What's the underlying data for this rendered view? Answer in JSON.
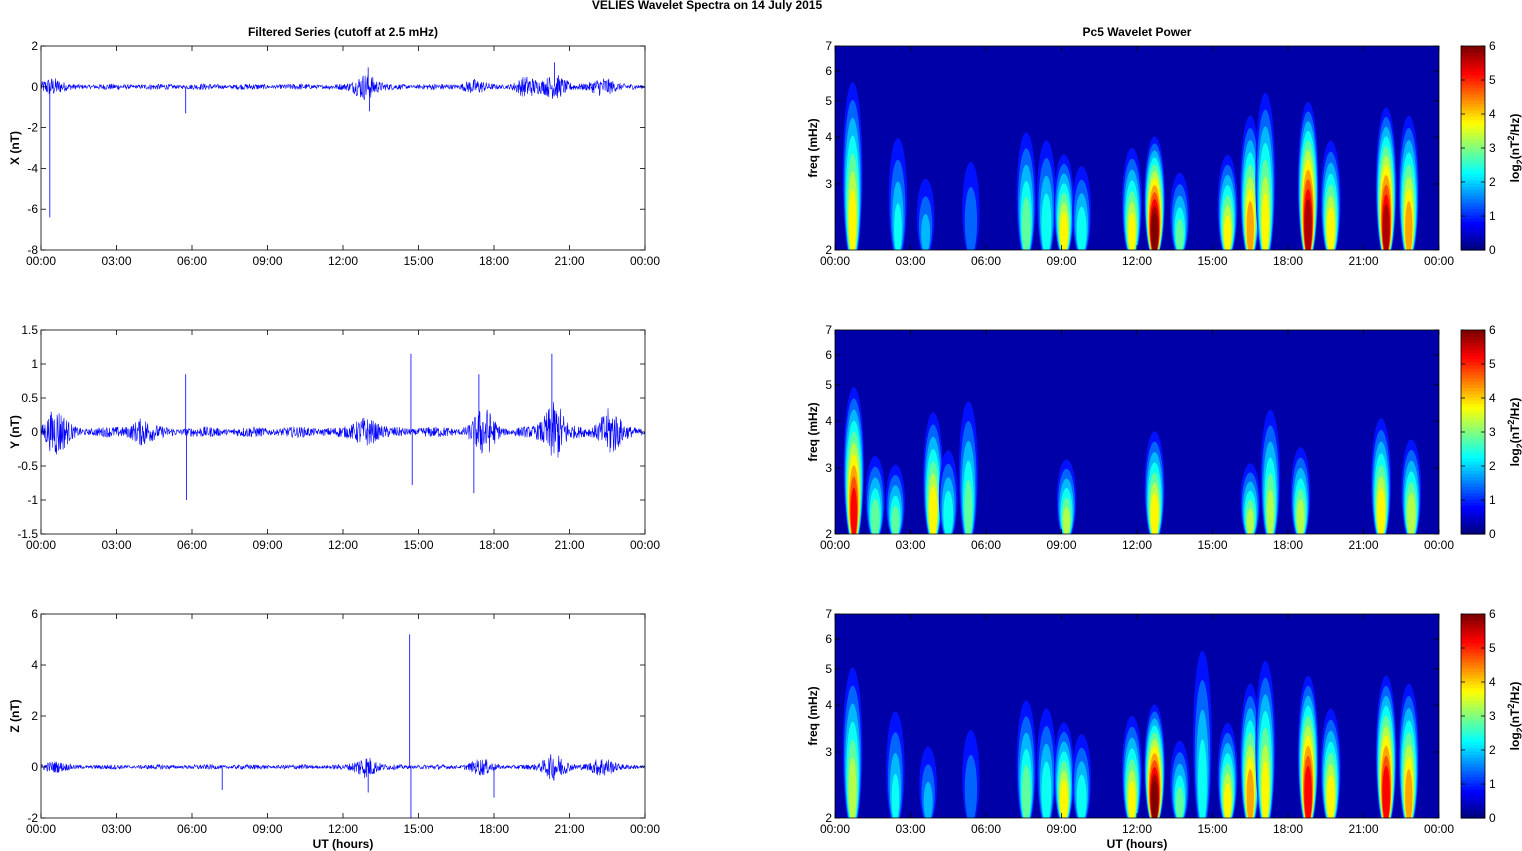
{
  "page_title": "VELIES Wavelet Spectra on 14 July      2015",
  "chart_data": [
    {
      "type": "line",
      "title": "Filtered Series (cutoff at 2.5 mHz)",
      "component": "X",
      "ylabel": "X (nT)",
      "xlabel": "",
      "ylim": [
        -8,
        2
      ],
      "yticks": [
        "2",
        "0",
        "-2",
        "-4",
        "-6",
        "-8"
      ],
      "xticks": [
        "00:00",
        "03:00",
        "06:00",
        "09:00",
        "12:00",
        "15:00",
        "18:00",
        "21:00",
        "00:00"
      ],
      "xlim_hours": [
        0,
        24
      ],
      "series": [
        {
          "color": "#0000ff",
          "baseline_amplitude": 0.15,
          "activity": [
            {
              "t": 0.4,
              "amp": 0.35
            },
            {
              "t": 12.9,
              "amp": 0.6
            },
            {
              "t": 17.2,
              "amp": 0.25
            },
            {
              "t": 19.3,
              "amp": 0.4
            },
            {
              "t": 20.4,
              "amp": 0.55
            },
            {
              "t": 22.3,
              "amp": 0.4
            }
          ],
          "spikes": [
            {
              "t": 0.35,
              "y": -6.4
            },
            {
              "t": 5.75,
              "y": -1.3
            },
            {
              "t": 13.0,
              "y": 0.95
            },
            {
              "t": 13.05,
              "y": -1.2
            },
            {
              "t": 20.4,
              "y": 1.2
            }
          ]
        }
      ]
    },
    {
      "type": "line",
      "title": "",
      "component": "Y",
      "ylabel": "Y (nT)",
      "xlabel": "",
      "ylim": [
        -1.5,
        1.5
      ],
      "yticks": [
        "1.5",
        "1",
        "0.5",
        "0",
        "-0.5",
        "-1",
        "-1.5"
      ],
      "xticks": [
        "00:00",
        "03:00",
        "06:00",
        "09:00",
        "12:00",
        "15:00",
        "18:00",
        "21:00",
        "00:00"
      ],
      "xlim_hours": [
        0,
        24
      ],
      "series": [
        {
          "color": "#0000ff",
          "baseline_amplitude": 0.08,
          "activity": [
            {
              "t": 0.6,
              "amp": 0.3
            },
            {
              "t": 4.0,
              "amp": 0.15
            },
            {
              "t": 12.9,
              "amp": 0.18
            },
            {
              "t": 17.6,
              "amp": 0.3
            },
            {
              "t": 20.4,
              "amp": 0.4
            },
            {
              "t": 22.6,
              "amp": 0.3
            }
          ],
          "spikes": [
            {
              "t": 5.75,
              "y": 0.85
            },
            {
              "t": 5.78,
              "y": -1.0
            },
            {
              "t": 14.7,
              "y": 1.15
            },
            {
              "t": 14.75,
              "y": -0.78
            },
            {
              "t": 17.2,
              "y": -0.9
            },
            {
              "t": 17.4,
              "y": 0.85
            },
            {
              "t": 20.3,
              "y": 1.15
            }
          ]
        }
      ]
    },
    {
      "type": "line",
      "title": "",
      "component": "Z",
      "ylabel": "Z (nT)",
      "xlabel": "UT (hours)",
      "ylim": [
        -2,
        6
      ],
      "yticks": [
        "6",
        "4",
        "2",
        "0",
        "-2"
      ],
      "xticks": [
        "00:00",
        "03:00",
        "06:00",
        "09:00",
        "12:00",
        "15:00",
        "18:00",
        "21:00",
        "00:00"
      ],
      "xlim_hours": [
        0,
        24
      ],
      "series": [
        {
          "color": "#0000ff",
          "baseline_amplitude": 0.1,
          "activity": [
            {
              "t": 0.5,
              "amp": 0.15
            },
            {
              "t": 12.9,
              "amp": 0.4
            },
            {
              "t": 17.5,
              "amp": 0.25
            },
            {
              "t": 20.4,
              "amp": 0.5
            },
            {
              "t": 22.3,
              "amp": 0.35
            }
          ],
          "spikes": [
            {
              "t": 14.65,
              "y": 5.2
            },
            {
              "t": 14.7,
              "y": -2.0
            },
            {
              "t": 13.0,
              "y": -1.0
            },
            {
              "t": 18.0,
              "y": -1.2
            },
            {
              "t": 7.2,
              "y": -0.9
            }
          ]
        }
      ]
    },
    {
      "type": "heatmap",
      "title": "Pc5 Wavelet Power",
      "ylabel": "freq (mHz)",
      "xlabel": "",
      "yscale": "log",
      "ylim": [
        2,
        7
      ],
      "yticks": [
        "7",
        "6",
        "5",
        "4",
        "3",
        "2"
      ],
      "xticks": [
        "00:00",
        "03:00",
        "06:00",
        "09:00",
        "12:00",
        "15:00",
        "18:00",
        "21:00",
        "00:00"
      ],
      "xlim_hours": [
        0,
        24
      ],
      "colorbar": {
        "label": "log2(nT^2/Hz)",
        "range": [
          0,
          6
        ],
        "ticks": [
          "6",
          "5",
          "4",
          "3",
          "2",
          "1",
          "0"
        ]
      },
      "blobs": [
        {
          "t": 0.7,
          "p": 3.4,
          "top": 6.5
        },
        {
          "t": 2.5,
          "p": 1.8,
          "top": 4.6
        },
        {
          "t": 3.6,
          "p": 1.4,
          "top": 3.4
        },
        {
          "t": 5.4,
          "p": 1.2,
          "top": 4.0
        },
        {
          "t": 7.6,
          "p": 2.6,
          "top": 4.6
        },
        {
          "t": 8.4,
          "p": 2.2,
          "top": 4.4
        },
        {
          "t": 9.1,
          "p": 3.6,
          "top": 3.8
        },
        {
          "t": 9.8,
          "p": 2.2,
          "top": 3.6
        },
        {
          "t": 11.8,
          "p": 3.4,
          "top": 4.0
        },
        {
          "t": 12.7,
          "p": 6.0,
          "top": 4.2
        },
        {
          "t": 13.7,
          "p": 2.4,
          "top": 3.4
        },
        {
          "t": 15.6,
          "p": 3.4,
          "top": 3.8
        },
        {
          "t": 16.5,
          "p": 4.0,
          "top": 5.0
        },
        {
          "t": 17.1,
          "p": 3.4,
          "top": 6.0
        },
        {
          "t": 18.8,
          "p": 5.6,
          "top": 5.4
        },
        {
          "t": 19.7,
          "p": 3.6,
          "top": 4.2
        },
        {
          "t": 21.9,
          "p": 5.4,
          "top": 5.2
        },
        {
          "t": 22.8,
          "p": 4.0,
          "top": 5.0
        }
      ]
    },
    {
      "type": "heatmap",
      "title": "",
      "ylabel": "freq (mHz)",
      "xlabel": "",
      "yscale": "log",
      "ylim": [
        2,
        7
      ],
      "yticks": [
        "7",
        "6",
        "5",
        "4",
        "3",
        "2"
      ],
      "xticks": [
        "00:00",
        "03:00",
        "06:00",
        "09:00",
        "12:00",
        "15:00",
        "18:00",
        "21:00",
        "00:00"
      ],
      "xlim_hours": [
        0,
        24
      ],
      "colorbar": {
        "label": "log2(nT^2/Hz)",
        "range": [
          0,
          6
        ],
        "ticks": [
          "6",
          "5",
          "4",
          "3",
          "2",
          "1",
          "0"
        ]
      },
      "blobs": [
        {
          "t": 0.75,
          "p": 4.8,
          "top": 5.4
        },
        {
          "t": 1.6,
          "p": 2.6,
          "top": 3.4
        },
        {
          "t": 2.4,
          "p": 2.4,
          "top": 3.2
        },
        {
          "t": 3.9,
          "p": 3.6,
          "top": 4.6
        },
        {
          "t": 4.5,
          "p": 2.2,
          "top": 3.6
        },
        {
          "t": 5.3,
          "p": 2.4,
          "top": 5.2
        },
        {
          "t": 9.2,
          "p": 2.8,
          "top": 3.3
        },
        {
          "t": 12.7,
          "p": 3.6,
          "top": 4.0
        },
        {
          "t": 16.5,
          "p": 2.8,
          "top": 3.2
        },
        {
          "t": 17.3,
          "p": 2.8,
          "top": 4.8
        },
        {
          "t": 18.5,
          "p": 3.0,
          "top": 3.6
        },
        {
          "t": 21.7,
          "p": 3.6,
          "top": 4.4
        },
        {
          "t": 22.9,
          "p": 3.2,
          "top": 3.8
        }
      ]
    },
    {
      "type": "heatmap",
      "title": "",
      "ylabel": "freq (mHz)",
      "xlabel": "UT (hours)",
      "yscale": "log",
      "ylim": [
        2,
        7
      ],
      "yticks": [
        "7",
        "6",
        "5",
        "4",
        "3",
        "2"
      ],
      "xticks": [
        "00:00",
        "03:00",
        "06:00",
        "09:00",
        "12:00",
        "15:00",
        "18:00",
        "21:00",
        "00:00"
      ],
      "xlim_hours": [
        0,
        24
      ],
      "colorbar": {
        "label": "log2(nT^2/Hz)",
        "range": [
          0,
          6
        ],
        "ticks": [
          "6",
          "5",
          "4",
          "3",
          "2",
          "1",
          "0"
        ]
      },
      "blobs": [
        {
          "t": 0.7,
          "p": 3.0,
          "top": 5.8
        },
        {
          "t": 2.4,
          "p": 1.8,
          "top": 4.4
        },
        {
          "t": 3.7,
          "p": 1.4,
          "top": 3.4
        },
        {
          "t": 5.4,
          "p": 1.2,
          "top": 4.0
        },
        {
          "t": 7.6,
          "p": 2.6,
          "top": 4.6
        },
        {
          "t": 8.4,
          "p": 2.2,
          "top": 4.4
        },
        {
          "t": 9.1,
          "p": 3.6,
          "top": 3.8
        },
        {
          "t": 9.8,
          "p": 2.2,
          "top": 3.6
        },
        {
          "t": 11.8,
          "p": 3.4,
          "top": 4.0
        },
        {
          "t": 12.7,
          "p": 6.0,
          "top": 4.2
        },
        {
          "t": 13.7,
          "p": 2.4,
          "top": 3.4
        },
        {
          "t": 14.6,
          "p": 2.0,
          "top": 7.0
        },
        {
          "t": 15.6,
          "p": 3.4,
          "top": 3.8
        },
        {
          "t": 16.5,
          "p": 4.0,
          "top": 5.0
        },
        {
          "t": 17.1,
          "p": 3.4,
          "top": 6.0
        },
        {
          "t": 18.8,
          "p": 5.2,
          "top": 5.2
        },
        {
          "t": 19.7,
          "p": 3.6,
          "top": 4.2
        },
        {
          "t": 21.9,
          "p": 5.2,
          "top": 5.2
        },
        {
          "t": 22.8,
          "p": 4.0,
          "top": 5.0
        }
      ]
    }
  ]
}
